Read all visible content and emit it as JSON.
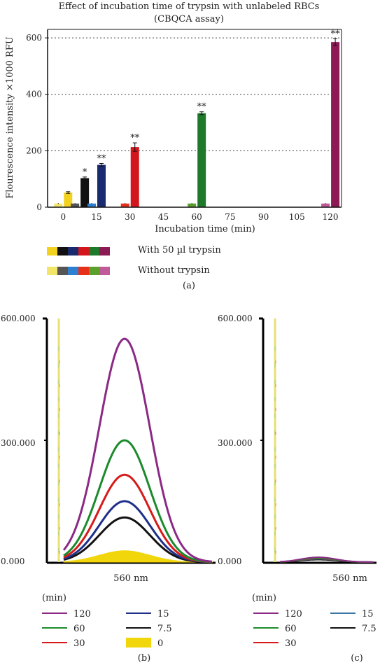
{
  "panel_a": {
    "title_line1": "Effect of incubation time of trypsin with unlabeled RBCs",
    "title_line2": "(CBQCA assay)",
    "label": "(a)",
    "legend_with": "With 50 µl trypsin",
    "legend_without": "Without trypsin",
    "swatches_with": [
      "#f2d21f",
      "#111111",
      "#1a2a6e",
      "#d2161c",
      "#1e7a2a",
      "#8c1a55"
    ],
    "swatches_without": [
      "#f3e46a",
      "#555555",
      "#2f7fd0",
      "#e6301a",
      "#5aa02a",
      "#c05a9a"
    ]
  },
  "panel_b": {
    "label": "(b)",
    "xlabel": "560 nm",
    "ytick_top": "600.000",
    "ytick_mid": "300.000",
    "ytick_bottom": "0.000",
    "legend_header": "(min)",
    "legend_items": [
      {
        "label": "120",
        "color": "#8b2a86"
      },
      {
        "label": "15",
        "color": "#1f2f8a"
      },
      {
        "label": "60",
        "color": "#1c8a2c"
      },
      {
        "label": "7.5",
        "color": "#111111"
      },
      {
        "label": "30",
        "color": "#d51b1b"
      },
      {
        "label": "0",
        "color": "#f0d60a"
      }
    ]
  },
  "panel_c": {
    "label": "(c)",
    "xlabel": "560 nm",
    "ytick_top": "600.000",
    "ytick_mid": "300.000",
    "ytick_bottom": "0.000",
    "legend_header": "(min)",
    "legend_items": [
      {
        "label": "120",
        "color": "#8b2a86"
      },
      {
        "label": "15",
        "color": "#3a78a8"
      },
      {
        "label": "60",
        "color": "#1c8a2c"
      },
      {
        "label": "7.5",
        "color": "#111111"
      },
      {
        "label": "30",
        "color": "#d51b1b"
      }
    ]
  },
  "chart_data": [
    {
      "type": "bar",
      "title": "Effect of incubation time of trypsin with unlabeled RBCs (CBQCA assay)",
      "xlabel": "Incubation time (min)",
      "ylabel": "Flourescence intensity ×1000 RFU",
      "xlim": [
        -7,
        125
      ],
      "ylim": [
        0,
        630
      ],
      "x_ticks": [
        0,
        15,
        30,
        45,
        60,
        75,
        90,
        105,
        120
      ],
      "y_ticks": [
        0,
        200,
        400,
        600
      ],
      "grid": "dotted horizontal at 200, 400, 600",
      "legend_placement": "below",
      "series": [
        {
          "name": "With 50 µl trypsin",
          "x": [
            0,
            7.5,
            15,
            30,
            60,
            120
          ],
          "values": [
            52,
            103,
            150,
            213,
            333,
            585
          ],
          "errors": [
            3,
            4,
            5,
            15,
            5,
            12
          ],
          "colors": [
            "#f2d21f",
            "#111111",
            "#1a2a6e",
            "#d2161c",
            "#1e7a2a",
            "#8c1a55"
          ],
          "significance": [
            "",
            "*",
            "**",
            "**",
            "**",
            "**"
          ]
        },
        {
          "name": "Without trypsin",
          "x": [
            0,
            7.5,
            15,
            30,
            60,
            120
          ],
          "values": [
            13,
            13,
            13,
            13,
            13,
            13
          ],
          "errors": [
            1.5,
            1.5,
            1.5,
            1.5,
            1.5,
            1.5
          ],
          "colors": [
            "#f3e46a",
            "#555555",
            "#2f7fd0",
            "#e6301a",
            "#5aa02a",
            "#c05a9a"
          ]
        }
      ]
    },
    {
      "type": "line",
      "xlabel": "560 nm",
      "ylim": [
        0,
        600
      ],
      "y_ticks": [
        "0.000",
        "300.000",
        "600.000"
      ],
      "series": [
        {
          "name": "120",
          "color": "#8b2a86",
          "peak": 550
        },
        {
          "name": "60",
          "color": "#1c8a2c",
          "peak": 300
        },
        {
          "name": "30",
          "color": "#d51b1b",
          "peak": 215
        },
        {
          "name": "15",
          "color": "#1f2f8a",
          "peak": 150
        },
        {
          "name": "7.5",
          "color": "#111111",
          "peak": 110
        },
        {
          "name": "0",
          "color": "#f0d60a",
          "peak": 28,
          "filled": true
        }
      ]
    },
    {
      "type": "line",
      "xlabel": "560 nm",
      "ylim": [
        0,
        600
      ],
      "y_ticks": [
        "0.000",
        "300.000",
        "600.000"
      ],
      "series": [
        {
          "name": "120",
          "color": "#8b2a86",
          "peak": 12
        },
        {
          "name": "60",
          "color": "#1c8a2c",
          "peak": 10
        },
        {
          "name": "30",
          "color": "#d51b1b",
          "peak": 9
        },
        {
          "name": "15",
          "color": "#3a78a8",
          "peak": 8
        },
        {
          "name": "7.5",
          "color": "#111111",
          "peak": 6
        }
      ]
    }
  ]
}
